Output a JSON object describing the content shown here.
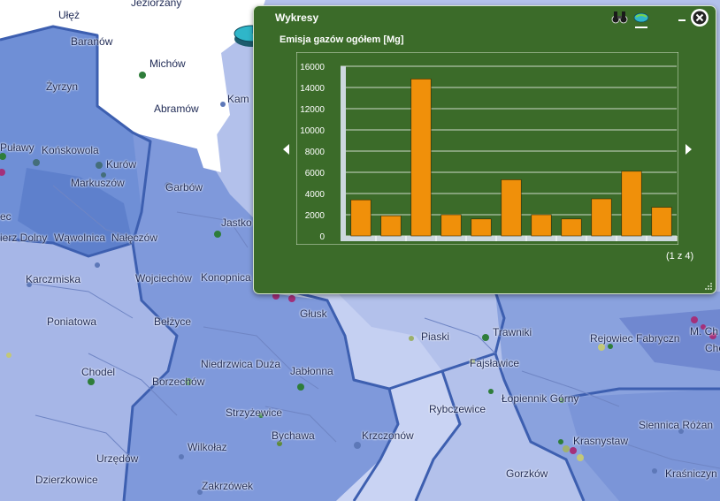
{
  "window": {
    "title": "Wykresy",
    "pager": "(1 z 4)",
    "accent": "#3b6b29",
    "bar_color": "#f0900a"
  },
  "icons": {
    "logo": "pie-chart-icon",
    "binoculars": "binoculars-icon",
    "globe": "globe-icon",
    "minimize": "minimize-icon",
    "close": "close-icon",
    "prev": "chevron-left-icon",
    "next": "chevron-right-icon",
    "resize": "resize-grip-icon"
  },
  "chart_data": {
    "type": "bar",
    "title": "Emisja gazów ogółem [Mg]",
    "categories": [
      "",
      "",
      "",
      "",
      "",
      "",
      "",
      "",
      "",
      "",
      ""
    ],
    "values": [
      3400,
      1900,
      14800,
      2000,
      1600,
      5300,
      2000,
      1600,
      3500,
      6100,
      2700
    ],
    "ylim": [
      0,
      16000
    ],
    "yticks": [
      "16000",
      "14000",
      "12000",
      "10000",
      "8000",
      "6000",
      "4000",
      "2000",
      "0"
    ],
    "grid": true
  },
  "map": {
    "places": [
      {
        "name": "Ułęż"
      },
      {
        "name": "Jeziorzany"
      },
      {
        "name": "Baranów"
      },
      {
        "name": "Michów"
      },
      {
        "name": "Żyrzyn"
      },
      {
        "name": "Abramów"
      },
      {
        "name": "Kam"
      },
      {
        "name": "Końskowola"
      },
      {
        "name": "Puławy"
      },
      {
        "name": "Kurów"
      },
      {
        "name": "Markuszów"
      },
      {
        "name": "Garbów"
      },
      {
        "name": "ec"
      },
      {
        "name": "Jastko"
      },
      {
        "name": "ierz Dolny"
      },
      {
        "name": "Wąwolnica"
      },
      {
        "name": "Nałęczów"
      },
      {
        "name": "Karczmiska"
      },
      {
        "name": "Wojciechów"
      },
      {
        "name": "Konopnica"
      },
      {
        "name": "Głusk"
      },
      {
        "name": "Poniatowa"
      },
      {
        "name": "Bełżyce"
      },
      {
        "name": "Piaski"
      },
      {
        "name": "Trawniki"
      },
      {
        "name": "Rejowiec Fabryczn"
      },
      {
        "name": "M. Ch"
      },
      {
        "name": "Che"
      },
      {
        "name": "Niedrzwica Duża"
      },
      {
        "name": "Jabłonna"
      },
      {
        "name": "Fajsławice"
      },
      {
        "name": "Chodel"
      },
      {
        "name": "Borzechów"
      },
      {
        "name": "Łopiennik Górny"
      },
      {
        "name": "Rybczewice"
      },
      {
        "name": "Strzyżewice"
      },
      {
        "name": "Siennica Różan"
      },
      {
        "name": "Bychawa"
      },
      {
        "name": "Krasnystaw"
      },
      {
        "name": "Wilkołaz"
      },
      {
        "name": "Krzczonów"
      },
      {
        "name": "Urzędów"
      },
      {
        "name": "Gorzków"
      },
      {
        "name": "Kraśniczyn"
      },
      {
        "name": "Dzierzkowice"
      },
      {
        "name": "Zakrzówek"
      }
    ]
  }
}
